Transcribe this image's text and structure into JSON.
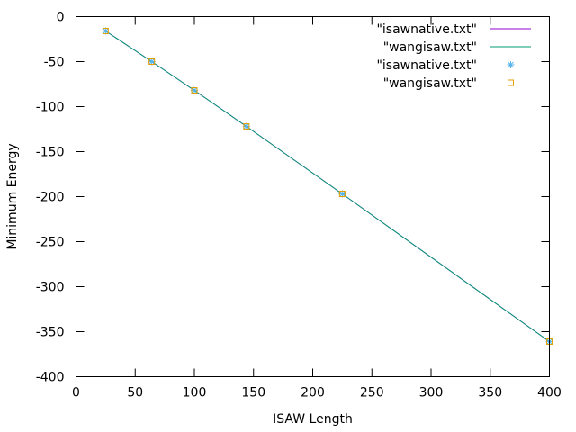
{
  "chart_data": {
    "type": "line",
    "xlabel": "ISAW Length",
    "ylabel": "Minimum Energy",
    "xlim": [
      0,
      400
    ],
    "ylim": [
      -400,
      0
    ],
    "x_ticks": [
      0,
      50,
      100,
      150,
      200,
      250,
      300,
      350,
      400
    ],
    "y_ticks": [
      0,
      -50,
      -100,
      -150,
      -200,
      -250,
      -300,
      -350,
      -400
    ],
    "grid": false,
    "legend_position": "top-right",
    "series": [
      {
        "name": "\"isawnative.txt\"",
        "style": "line",
        "color": "#9400d3",
        "x": [
          25,
          64,
          100,
          144,
          225,
          400
        ],
        "y": [
          -16,
          -50,
          -82,
          -122,
          -197,
          -361
        ]
      },
      {
        "name": "\"wangisaw.txt\"",
        "style": "line",
        "color": "#009e73",
        "x": [
          25,
          64,
          100,
          144,
          225,
          400
        ],
        "y": [
          -16,
          -50,
          -82,
          -122,
          -197,
          -361
        ]
      },
      {
        "name": "\"isawnative.txt\"",
        "style": "points",
        "marker": "star",
        "color": "#56b4e9",
        "x": [
          25,
          64,
          100,
          144,
          225,
          400
        ],
        "y": [
          -16,
          -50,
          -82,
          -122,
          -197,
          -361
        ]
      },
      {
        "name": "\"wangisaw.txt\"",
        "style": "points",
        "marker": "square",
        "color": "#e69f00",
        "x": [
          25,
          64,
          100,
          144,
          225,
          400
        ],
        "y": [
          -16,
          -50,
          -82,
          -122,
          -197,
          -361
        ]
      }
    ]
  }
}
